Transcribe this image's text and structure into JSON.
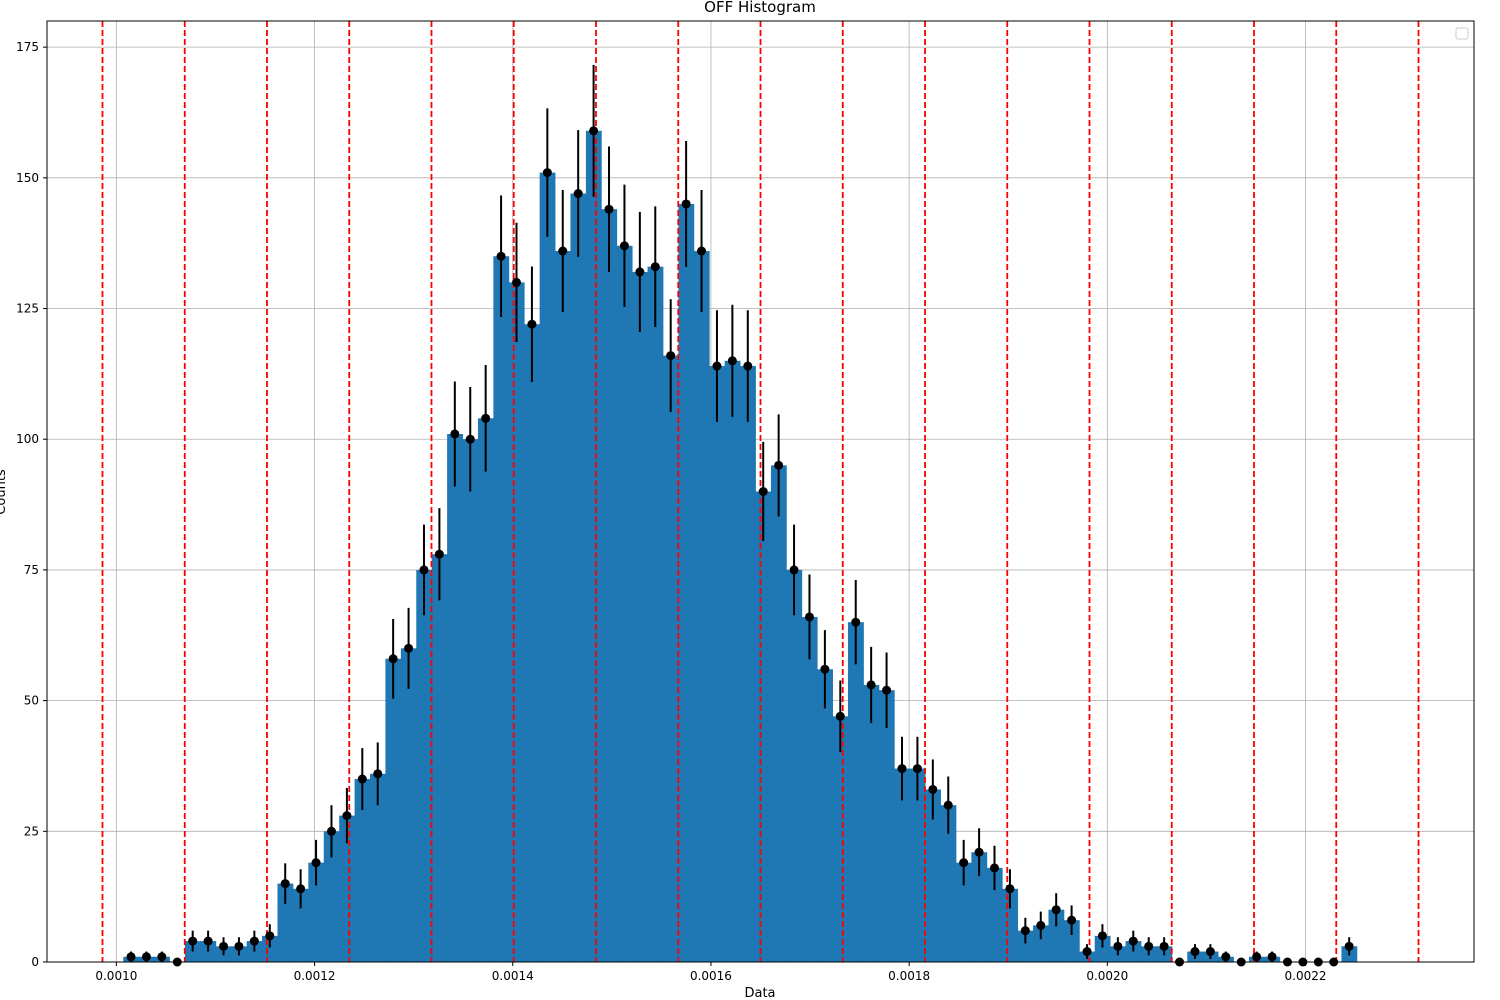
{
  "chart_data": {
    "type": "bar",
    "title": "OFF Histogram",
    "xlabel": "Data",
    "ylabel": "Counts",
    "xlim": [
      0.00093,
      0.00237
    ],
    "ylim": [
      0,
      180
    ],
    "grid": true,
    "legend": {
      "position": "top-right",
      "entries": []
    },
    "x_ticks": [
      0.001,
      0.0012,
      0.0014,
      0.0016,
      0.0018,
      0.002,
      0.0022
    ],
    "x_tick_labels": [
      "0.0010",
      "0.0012",
      "0.0014",
      "0.0016",
      "0.0018",
      "0.0020",
      "0.0022"
    ],
    "y_ticks": [
      0,
      25,
      50,
      75,
      100,
      125,
      150,
      175
    ],
    "y_tick_labels": [
      "0",
      "25",
      "50",
      "75",
      "100",
      "125",
      "150",
      "175"
    ],
    "bins": {
      "start": 0.001007,
      "width": 1.556e-05,
      "counts": [
        1,
        1,
        1,
        0,
        4,
        4,
        3,
        3,
        4,
        5,
        15,
        14,
        19,
        25,
        28,
        35,
        36,
        58,
        60,
        75,
        78,
        101,
        100,
        104,
        135,
        130,
        122,
        151,
        136,
        147,
        159,
        144,
        137,
        132,
        133,
        116,
        145,
        136,
        114,
        115,
        114,
        90,
        95,
        75,
        66,
        56,
        47,
        65,
        53,
        52,
        37,
        37,
        33,
        30,
        19,
        21,
        18,
        14,
        6,
        7,
        10,
        8,
        2,
        5,
        3,
        4,
        3,
        3,
        0,
        2,
        2,
        1,
        0,
        1,
        1,
        0,
        0,
        0,
        0,
        3
      ]
    },
    "error_bars": {
      "type": "sqrt(count)",
      "marker": "filled circle",
      "color": "#000000"
    },
    "vlines": {
      "style": "dashed",
      "color": "#ff0000",
      "x": [
        0.000986,
        0.001069,
        0.001152,
        0.001235,
        0.001318,
        0.001401,
        0.001484,
        0.001567,
        0.00165,
        0.001733,
        0.001816,
        0.001899,
        0.001982,
        0.002065,
        0.002148,
        0.002231,
        0.002314
      ]
    },
    "colors": {
      "bar": "#1f77b4",
      "vline": "#ff0000",
      "grid": "#b0b0b0",
      "error": "#000000"
    }
  }
}
